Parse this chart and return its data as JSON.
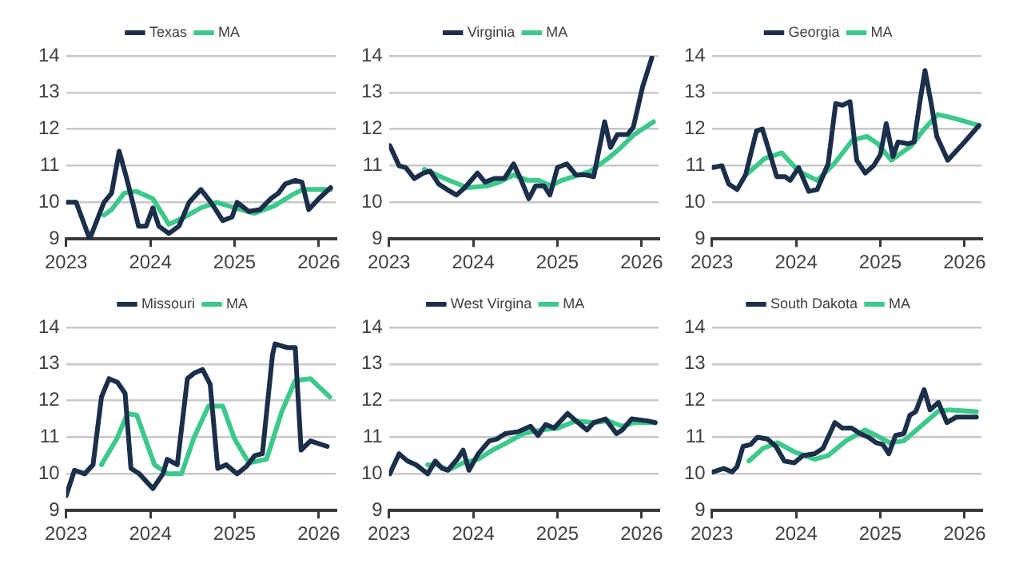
{
  "chart_data": [
    {
      "type": "line",
      "xlim": [
        2023,
        2026.2
      ],
      "xticks": [
        2023,
        2024,
        2025,
        2026
      ],
      "ylim": [
        9,
        14
      ],
      "yticks": [
        9,
        10,
        11,
        12,
        13,
        14
      ],
      "grid": "y",
      "legend": "top",
      "marker": "none",
      "series": [
        {
          "name": "Texas",
          "color": "#1b2f4a",
          "x": [
            2023.0,
            2023.12,
            2023.28,
            2023.45,
            2023.54,
            2023.63,
            2023.72,
            2023.86,
            2023.95,
            2024.03,
            2024.1,
            2024.22,
            2024.34,
            2024.46,
            2024.6,
            2024.72,
            2024.86,
            2024.97,
            2025.03,
            2025.17,
            2025.3,
            2025.43,
            2025.52,
            2025.6,
            2025.72,
            2025.8,
            2025.88,
            2026.0,
            2026.14
          ],
          "values": [
            10.0,
            10.0,
            9.0,
            10.0,
            10.25,
            11.4,
            10.65,
            9.35,
            9.35,
            9.85,
            9.35,
            9.15,
            9.35,
            10.0,
            10.35,
            10.0,
            9.5,
            9.6,
            10.0,
            9.75,
            9.8,
            10.1,
            10.25,
            10.5,
            10.6,
            10.55,
            9.8,
            10.1,
            10.4
          ]
        },
        {
          "name": "MA",
          "color": "#3dc88c",
          "x": [
            2023.45,
            2023.54,
            2023.69,
            2023.83,
            2024.03,
            2024.22,
            2024.41,
            2024.6,
            2024.79,
            2025.0,
            2025.23,
            2025.47,
            2025.68,
            2025.81,
            2026.14
          ],
          "values": [
            9.65,
            9.8,
            10.25,
            10.3,
            10.1,
            9.4,
            9.6,
            9.85,
            10.0,
            9.85,
            9.7,
            9.9,
            10.2,
            10.35,
            10.35
          ]
        }
      ]
    },
    {
      "type": "line",
      "xlim": [
        2023,
        2026.2
      ],
      "xticks": [
        2023,
        2024,
        2025,
        2026
      ],
      "ylim": [
        9,
        14
      ],
      "yticks": [
        9,
        10,
        11,
        12,
        13,
        14
      ],
      "grid": "y",
      "legend": "top",
      "marker": "none",
      "series": [
        {
          "name": "Virginia",
          "color": "#1b2f4a",
          "x": [
            2023.01,
            2023.12,
            2023.2,
            2023.3,
            2023.41,
            2023.49,
            2023.59,
            2023.69,
            2023.8,
            2023.9,
            2024.05,
            2024.14,
            2024.25,
            2024.37,
            2024.48,
            2024.57,
            2024.66,
            2024.74,
            2024.84,
            2024.91,
            2025.0,
            2025.11,
            2025.22,
            2025.34,
            2025.43,
            2025.56,
            2025.63,
            2025.71,
            2025.83,
            2025.9,
            2026.01,
            2026.12
          ],
          "values": [
            11.55,
            11.0,
            10.95,
            10.65,
            10.8,
            10.85,
            10.5,
            10.35,
            10.2,
            10.4,
            10.8,
            10.55,
            10.65,
            10.65,
            11.05,
            10.6,
            10.1,
            10.45,
            10.45,
            10.2,
            10.95,
            11.05,
            10.75,
            10.75,
            10.7,
            12.2,
            11.5,
            11.85,
            11.85,
            12.05,
            13.15,
            13.95
          ]
        },
        {
          "name": "MA",
          "color": "#3dc88c",
          "x": [
            2023.42,
            2023.66,
            2023.93,
            2024.17,
            2024.31,
            2024.48,
            2024.65,
            2024.78,
            2024.92,
            2025.05,
            2025.26,
            2025.39,
            2025.6,
            2025.73,
            2025.91,
            2026.14
          ],
          "values": [
            10.9,
            10.65,
            10.4,
            10.45,
            10.55,
            10.75,
            10.6,
            10.6,
            10.45,
            10.6,
            10.75,
            10.85,
            11.2,
            11.45,
            11.85,
            12.2
          ]
        }
      ]
    },
    {
      "type": "line",
      "xlim": [
        2023,
        2026.2
      ],
      "xticks": [
        2023,
        2024,
        2025,
        2026
      ],
      "ylim": [
        9,
        14
      ],
      "yticks": [
        9,
        10,
        11,
        12,
        13,
        14
      ],
      "grid": "y",
      "legend": "top",
      "marker": "none",
      "series": [
        {
          "name": "Georgia",
          "color": "#1b2f4a",
          "x": [
            2023.01,
            2023.12,
            2023.2,
            2023.3,
            2023.4,
            2023.53,
            2023.6,
            2023.7,
            2023.77,
            2023.87,
            2023.93,
            2024.03,
            2024.15,
            2024.25,
            2024.38,
            2024.47,
            2024.55,
            2024.64,
            2024.72,
            2024.82,
            2024.92,
            2025.0,
            2025.07,
            2025.15,
            2025.21,
            2025.33,
            2025.4,
            2025.47,
            2025.53,
            2025.6,
            2025.67,
            2025.8,
            2026.0,
            2026.17
          ],
          "values": [
            10.95,
            11.0,
            10.5,
            10.35,
            10.75,
            11.95,
            12.0,
            11.25,
            10.7,
            10.7,
            10.6,
            10.95,
            10.3,
            10.35,
            11.05,
            12.7,
            12.65,
            12.75,
            11.15,
            10.8,
            11.0,
            11.3,
            12.15,
            11.25,
            11.65,
            11.6,
            11.65,
            12.75,
            13.6,
            12.75,
            11.8,
            11.15,
            11.65,
            12.1
          ]
        },
        {
          "name": "MA",
          "color": "#3dc88c",
          "x": [
            2023.43,
            2023.63,
            2023.83,
            2024.03,
            2024.25,
            2024.45,
            2024.67,
            2024.84,
            2024.97,
            2025.13,
            2025.37,
            2025.52,
            2025.68,
            2025.87,
            2026.17
          ],
          "values": [
            10.8,
            11.2,
            11.35,
            10.85,
            10.6,
            11.05,
            11.7,
            11.8,
            11.6,
            11.15,
            11.55,
            12.0,
            12.4,
            12.3,
            12.1
          ]
        }
      ]
    },
    {
      "type": "line",
      "xlim": [
        2023,
        2026.2
      ],
      "xticks": [
        2023,
        2024,
        2025,
        2026
      ],
      "ylim": [
        9,
        14
      ],
      "yticks": [
        9,
        10,
        11,
        12,
        13,
        14
      ],
      "grid": "y",
      "legend": "top",
      "marker": "none",
      "series": [
        {
          "name": "Missouri",
          "color": "#1b2f4a",
          "x": [
            2023.0,
            2023.1,
            2023.22,
            2023.32,
            2023.42,
            2023.51,
            2023.61,
            2023.7,
            2023.77,
            2023.87,
            2024.03,
            2024.15,
            2024.2,
            2024.32,
            2024.44,
            2024.52,
            2024.62,
            2024.71,
            2024.8,
            2024.9,
            2025.03,
            2025.14,
            2025.24,
            2025.33,
            2025.45,
            2025.48,
            2025.62,
            2025.72,
            2025.79,
            2025.9,
            2026.1
          ],
          "values": [
            9.4,
            10.1,
            10.0,
            10.25,
            12.1,
            12.6,
            12.5,
            12.2,
            10.15,
            10.0,
            9.6,
            10.0,
            10.4,
            10.25,
            12.6,
            12.75,
            12.85,
            12.45,
            10.15,
            10.25,
            10.0,
            10.2,
            10.5,
            10.55,
            13.25,
            13.55,
            13.45,
            13.45,
            10.65,
            10.9,
            10.75
          ]
        },
        {
          "name": "MA",
          "color": "#3dc88c",
          "x": [
            2023.42,
            2023.6,
            2023.73,
            2023.84,
            2024.05,
            2024.21,
            2024.37,
            2024.52,
            2024.69,
            2024.86,
            2025.0,
            2025.17,
            2025.38,
            2025.56,
            2025.72,
            2025.9,
            2026.13
          ],
          "values": [
            10.25,
            10.95,
            11.65,
            11.6,
            10.25,
            10.0,
            10.0,
            11.0,
            11.85,
            11.85,
            10.95,
            10.3,
            10.4,
            11.7,
            12.55,
            12.6,
            12.1
          ]
        }
      ]
    },
    {
      "type": "line",
      "xlim": [
        2023,
        2026.2
      ],
      "xticks": [
        2023,
        2024,
        2025,
        2026
      ],
      "ylim": [
        9,
        14
      ],
      "yticks": [
        9,
        10,
        11,
        12,
        13,
        14
      ],
      "grid": "y",
      "legend": "top",
      "marker": "none",
      "series": [
        {
          "name": "West Virgina",
          "color": "#1b2f4a",
          "x": [
            2023.01,
            2023.12,
            2023.22,
            2023.32,
            2023.46,
            2023.55,
            2023.63,
            2023.7,
            2023.81,
            2023.88,
            2023.95,
            2024.06,
            2024.19,
            2024.28,
            2024.38,
            2024.53,
            2024.68,
            2024.77,
            2024.86,
            2024.96,
            2025.12,
            2025.22,
            2025.35,
            2025.43,
            2025.57,
            2025.7,
            2025.77,
            2025.88,
            2026.06,
            2026.16
          ],
          "values": [
            10.0,
            10.55,
            10.35,
            10.25,
            10.0,
            10.35,
            10.15,
            10.1,
            10.4,
            10.65,
            10.1,
            10.55,
            10.9,
            10.95,
            11.1,
            11.15,
            11.3,
            11.05,
            11.35,
            11.25,
            11.65,
            11.45,
            11.2,
            11.4,
            11.5,
            11.1,
            11.2,
            11.5,
            11.45,
            11.4
          ]
        },
        {
          "name": "MA",
          "color": "#3dc88c",
          "x": [
            2023.46,
            2023.57,
            2023.7,
            2023.88,
            2024.06,
            2024.23,
            2024.4,
            2024.6,
            2024.81,
            2025.01,
            2025.22,
            2025.43,
            2025.6,
            2025.77,
            2025.91,
            2026.16
          ],
          "values": [
            10.25,
            10.25,
            10.1,
            10.3,
            10.4,
            10.65,
            10.85,
            11.1,
            11.2,
            11.25,
            11.45,
            11.4,
            11.45,
            11.3,
            11.4,
            11.4
          ]
        }
      ]
    },
    {
      "type": "line",
      "xlim": [
        2023,
        2026.2
      ],
      "xticks": [
        2023,
        2024,
        2025,
        2026
      ],
      "ylim": [
        9,
        14
      ],
      "yticks": [
        9,
        10,
        11,
        12,
        13,
        14
      ],
      "grid": "y",
      "legend": "top",
      "marker": "none",
      "series": [
        {
          "name": "South Dakota",
          "color": "#1b2f4a",
          "x": [
            2023.01,
            2023.14,
            2023.24,
            2023.3,
            2023.37,
            2023.46,
            2023.54,
            2023.66,
            2023.76,
            2023.86,
            2023.98,
            2024.08,
            2024.22,
            2024.32,
            2024.46,
            2024.55,
            2024.66,
            2024.76,
            2024.86,
            2024.95,
            2025.03,
            2025.1,
            2025.18,
            2025.28,
            2025.35,
            2025.42,
            2025.52,
            2025.59,
            2025.69,
            2025.79,
            2025.9,
            2026.14
          ],
          "values": [
            10.05,
            10.15,
            10.05,
            10.2,
            10.75,
            10.8,
            11.0,
            10.95,
            10.75,
            10.35,
            10.3,
            10.5,
            10.55,
            10.7,
            11.4,
            11.25,
            11.25,
            11.1,
            11.0,
            10.85,
            10.8,
            10.55,
            11.05,
            11.1,
            11.6,
            11.7,
            12.3,
            11.75,
            11.95,
            11.4,
            11.55,
            11.55
          ]
        },
        {
          "name": "MA",
          "color": "#3dc88c",
          "x": [
            2023.44,
            2023.61,
            2023.78,
            2023.98,
            2024.22,
            2024.38,
            2024.59,
            2024.82,
            2024.95,
            2025.11,
            2025.28,
            2025.48,
            2025.68,
            2025.82,
            2026.14
          ],
          "values": [
            10.35,
            10.7,
            10.85,
            10.6,
            10.4,
            10.5,
            10.9,
            11.2,
            11.05,
            10.85,
            10.9,
            11.3,
            11.7,
            11.75,
            11.7
          ]
        }
      ]
    }
  ]
}
